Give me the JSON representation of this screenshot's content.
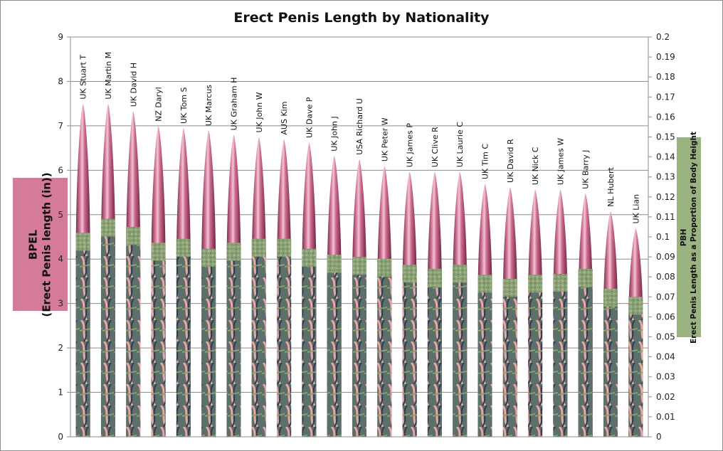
{
  "chart_data": {
    "type": "bar",
    "title": "Erect Penis Length by Nationality",
    "ylabel": [
      "BPEL",
      "(Erect Penis length (in))"
    ],
    "y2label": [
      "PBH",
      "Erect Penis Length as a Proportion of Body Height"
    ],
    "ylim": [
      0,
      9
    ],
    "y2lim": [
      0,
      0.2
    ],
    "yticks": [
      "0",
      "1",
      "2",
      "3",
      "4",
      "5",
      "6",
      "7",
      "8",
      "9"
    ],
    "y2ticks": [
      "0",
      "0.01",
      "0.02",
      "0.03",
      "0.04",
      "0.05",
      "0.06",
      "0.07",
      "0.08",
      "0.09",
      "0.1",
      "0.11",
      "0.12",
      "0.13",
      "0.14",
      "0.15",
      "0.16",
      "0.17",
      "0.18",
      "0.19",
      "0.2"
    ],
    "grid": true,
    "categories": [
      "UK  Stuart T",
      "UK Martin M",
      "UK David H",
      "NZ Daryl",
      "UK Tom  S",
      "UK Marcus",
      "UK Graham H",
      "UK John  W",
      "AUS Kim",
      "UK Dave  P",
      "UK John  J",
      "USA Richard U",
      "UK Peter  W",
      "UK James P",
      "UK Clive R",
      "UK Laurie C",
      "UK Tim C",
      "UK David R",
      "UK Nick C",
      "UK James  W",
      "UK Barry J",
      "NL Hubert",
      "UK Lian"
    ],
    "series": [
      {
        "axis": "left",
        "color": "#c9668c",
        "values": [
          7.5,
          7.5,
          7.33,
          7.0,
          6.95,
          6.9,
          6.8,
          6.75,
          6.7,
          6.63,
          6.33,
          6.25,
          6.1,
          5.97,
          5.97,
          5.97,
          5.7,
          5.62,
          5.57,
          5.57,
          5.48,
          5.08,
          4.7
        ]
      },
      {
        "axis": "right",
        "color": "#8fa877",
        "values": [
          0.102,
          0.109,
          0.105,
          0.097,
          0.099,
          0.094,
          0.097,
          0.099,
          0.099,
          0.094,
          0.091,
          0.09,
          0.089,
          0.086,
          0.084,
          0.086,
          0.081,
          0.079,
          0.081,
          0.0815,
          0.084,
          0.074,
          0.07
        ]
      }
    ]
  }
}
